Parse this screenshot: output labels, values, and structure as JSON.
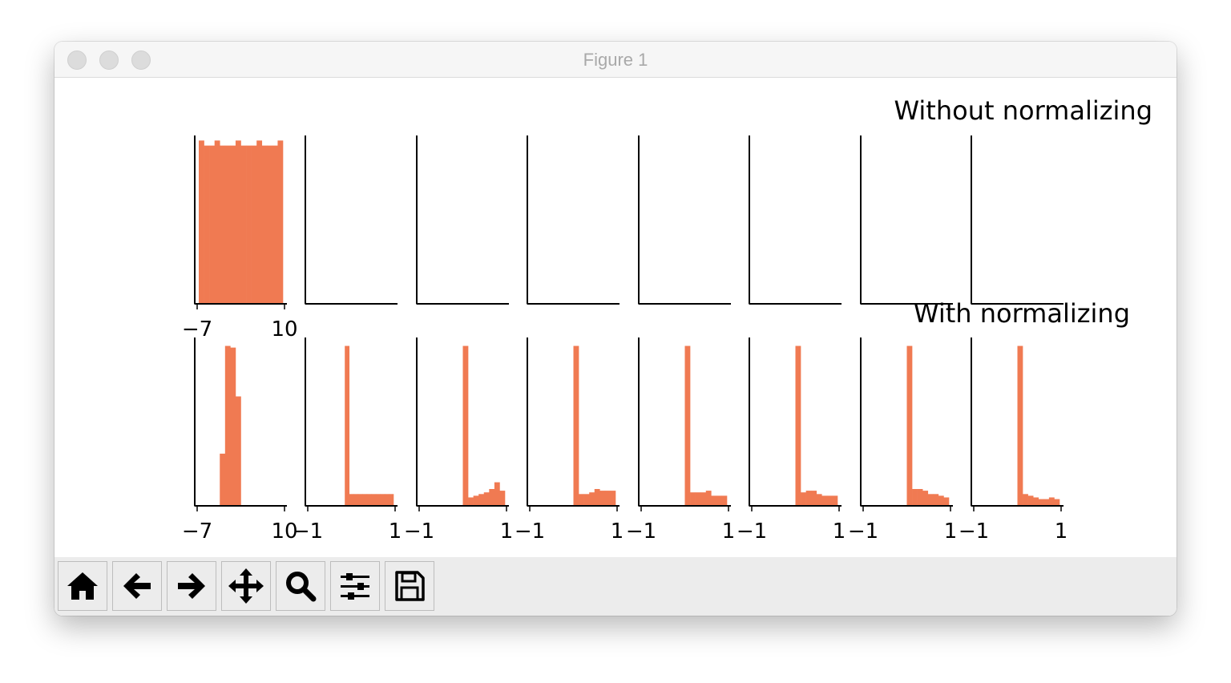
{
  "window": {
    "title": "Figure 1"
  },
  "figure": {
    "title_top": "Without normalizing",
    "title_bottom": "With normalizing",
    "bar_color": "#f07a52"
  },
  "toolbar": {
    "buttons": [
      {
        "name": "home-button",
        "icon": "home-icon"
      },
      {
        "name": "back-button",
        "icon": "arrow-left-icon"
      },
      {
        "name": "forward-button",
        "icon": "arrow-right-icon"
      },
      {
        "name": "pan-button",
        "icon": "move-icon"
      },
      {
        "name": "zoom-button",
        "icon": "magnifier-icon"
      },
      {
        "name": "configure-subplots-button",
        "icon": "sliders-icon"
      },
      {
        "name": "save-button",
        "icon": "floppy-disk-icon"
      }
    ]
  },
  "chart_data": [
    {
      "type": "bar",
      "title": "Without normalizing",
      "xlim": [
        -7,
        10
      ],
      "xticklabels": [
        "−7",
        "10"
      ],
      "values": [
        0.97,
        0.94,
        0.94,
        0.97,
        0.94,
        0.94,
        0.94,
        0.97,
        0.94,
        0.94,
        0.94,
        0.97,
        0.94,
        0.94,
        0.94,
        0.97
      ]
    },
    {
      "type": "bar",
      "xlim": [
        -1,
        1
      ],
      "xticklabels": [],
      "values": []
    },
    {
      "type": "bar",
      "xlim": [
        -1,
        1
      ],
      "xticklabels": [],
      "values": []
    },
    {
      "type": "bar",
      "xlim": [
        -1,
        1
      ],
      "xticklabels": [],
      "values": []
    },
    {
      "type": "bar",
      "xlim": [
        -1,
        1
      ],
      "xticklabels": [],
      "values": []
    },
    {
      "type": "bar",
      "xlim": [
        -1,
        1
      ],
      "xticklabels": [],
      "values": []
    },
    {
      "type": "bar",
      "xlim": [
        -1,
        1
      ],
      "xticklabels": [],
      "values": []
    },
    {
      "type": "bar",
      "xlim": [
        -1,
        1
      ],
      "xticklabels": [],
      "values": []
    },
    {
      "type": "bar",
      "title": "With normalizing",
      "xlim": [
        -7,
        10
      ],
      "xticklabels": [
        "−7",
        "10"
      ],
      "values": [
        0,
        0,
        0,
        0,
        0.31,
        0.95,
        0.94,
        0.65,
        0,
        0,
        0,
        0,
        0,
        0,
        0,
        0
      ]
    },
    {
      "type": "bar",
      "xlim": [
        -1,
        1
      ],
      "xticklabels": [
        "−1",
        "1"
      ],
      "values": [
        0,
        0,
        0,
        0,
        0,
        0,
        0,
        0,
        0.95,
        0.07,
        0.07,
        0.07,
        0.07,
        0.07,
        0.07,
        0.07,
        0.07,
        0.07,
        0.07
      ]
    },
    {
      "type": "bar",
      "xlim": [
        -1,
        1
      ],
      "xticklabels": [
        "−1",
        "1"
      ],
      "values": [
        0,
        0,
        0,
        0,
        0,
        0,
        0,
        0,
        0.95,
        0.05,
        0.06,
        0.07,
        0.08,
        0.1,
        0.14,
        0.09
      ]
    },
    {
      "type": "bar",
      "xlim": [
        -1,
        1
      ],
      "xticklabels": [
        "−1",
        "1"
      ],
      "values": [
        0,
        0,
        0,
        0,
        0,
        0,
        0,
        0,
        0.95,
        0.07,
        0.07,
        0.08,
        0.1,
        0.09,
        0.09,
        0.09
      ]
    },
    {
      "type": "bar",
      "xlim": [
        -1,
        1
      ],
      "xticklabels": [
        "−1",
        "1"
      ],
      "values": [
        0,
        0,
        0,
        0,
        0,
        0,
        0,
        0,
        0.95,
        0.08,
        0.08,
        0.08,
        0.09,
        0.06,
        0.06,
        0.06
      ]
    },
    {
      "type": "bar",
      "xlim": [
        -1,
        1
      ],
      "xticklabels": [
        "−1",
        "1"
      ],
      "values": [
        0,
        0,
        0,
        0,
        0,
        0,
        0,
        0,
        0.95,
        0.08,
        0.09,
        0.09,
        0.07,
        0.06,
        0.06,
        0.06
      ]
    },
    {
      "type": "bar",
      "xlim": [
        -1,
        1
      ],
      "xticklabels": [
        "−1",
        "1"
      ],
      "values": [
        0,
        0,
        0,
        0,
        0,
        0,
        0,
        0,
        0.95,
        0.1,
        0.1,
        0.09,
        0.07,
        0.07,
        0.06,
        0.05
      ]
    },
    {
      "type": "bar",
      "xlim": [
        -1,
        1
      ],
      "xticklabels": [
        "−1",
        "1"
      ],
      "values": [
        0,
        0,
        0,
        0,
        0,
        0,
        0,
        0,
        0.95,
        0.07,
        0.06,
        0.05,
        0.04,
        0.04,
        0.05,
        0.04
      ]
    }
  ]
}
